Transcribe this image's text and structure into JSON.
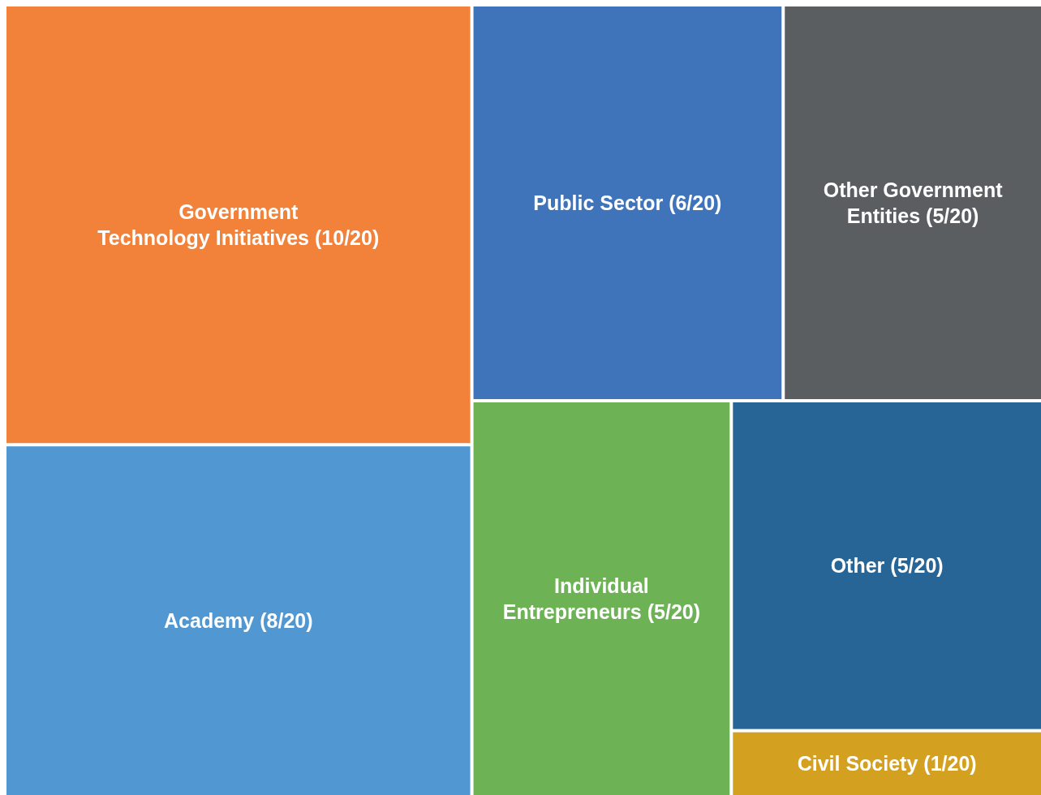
{
  "chart_data": {
    "type": "other",
    "categories": [
      "Government\nTechnology Initiatives",
      "Academy",
      "Public Sector",
      "Other Government\nEntities",
      "Individual\nEntrepreneurs",
      "Other",
      "Civil Society"
    ],
    "values": [
      10,
      8,
      6,
      5,
      5,
      5,
      1
    ],
    "value_labels": [
      "(10/20)",
      "(8/20)",
      "(6/20)",
      "(5/20)",
      "(5/20)",
      "(5/20)",
      "(1/20)"
    ],
    "colors": [
      "#f2823a",
      "#5198d2",
      "#3f74ba",
      "#5a5e60",
      "#6db356",
      "#286597",
      "#d4a020"
    ]
  }
}
